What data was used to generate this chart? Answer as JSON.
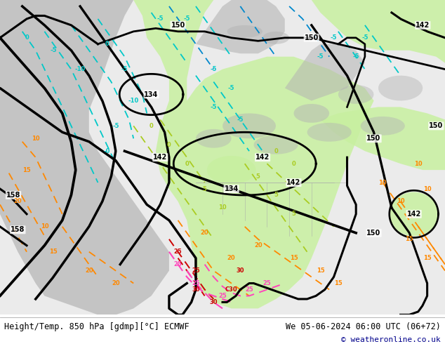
{
  "title_left": "Height/Temp. 850 hPa [gdmp][°C] ECMWF",
  "title_right": "We 05-06-2024 06:00 UTC (06+72)",
  "copyright": "© weatheronline.co.uk",
  "bg_color": "#ffffff",
  "fig_width": 6.34,
  "fig_height": 4.9,
  "dpi": 100,
  "bottom_text_color": "#00008b",
  "title_color": "#000000",
  "map_bg": "#ebebeb",
  "green_light": "#c8f0a0",
  "green_mid": "#b8e888",
  "gray_land": "#b4b4b4",
  "gray_water": "#d8d8d8",
  "cyan_temp": "#00c8c8",
  "blue_temp": "#0088cc",
  "green_temp": "#88cc00",
  "orange_temp": "#ff8800",
  "red_temp": "#cc0000",
  "pink_temp": "#ff44bb",
  "black_contour_lw": 2.2,
  "temp_contour_lw": 1.3
}
